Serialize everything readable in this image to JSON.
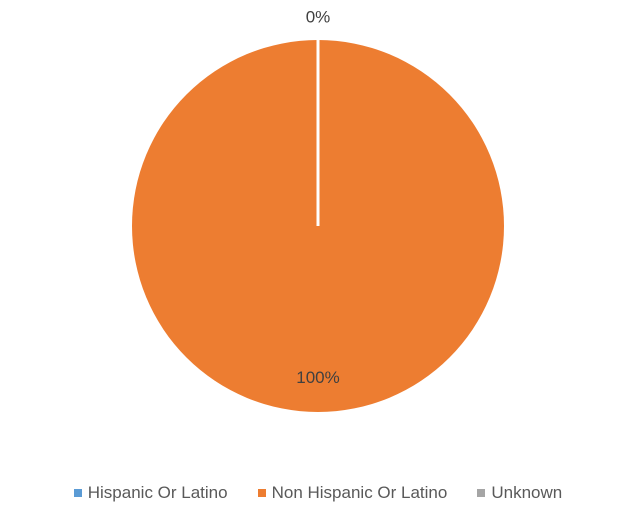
{
  "chart_data": {
    "type": "pie",
    "categories": [
      "Hispanic Or Latino",
      "Non Hispanic Or Latino",
      "Unknown"
    ],
    "values": [
      0,
      100,
      0
    ],
    "data_labels": [
      "0%",
      "100%",
      ""
    ],
    "colors": [
      "#5B9BD5",
      "#ED7D31",
      "#A5A5A5"
    ],
    "legend_position": "bottom"
  }
}
